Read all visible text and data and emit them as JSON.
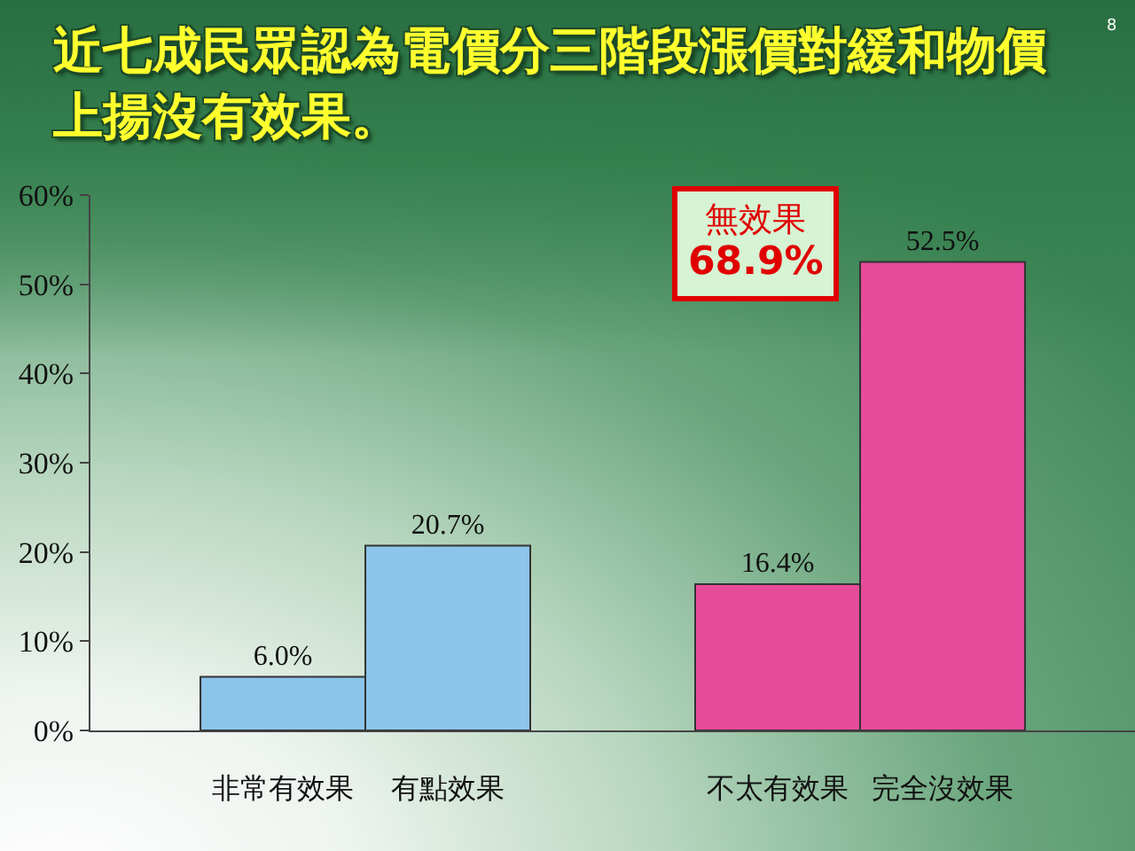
{
  "chart_data": {
    "type": "bar",
    "title": "近七成民眾認為電價分三階段漲價對緩和物價上揚沒有效果。",
    "categories": [
      "非常有效果",
      "有點效果",
      null,
      "不太有效果",
      "完全沒效果"
    ],
    "values": [
      6.0,
      20.7,
      null,
      16.4,
      52.5
    ],
    "colors": [
      "#8cc4ea",
      "#8cc4ea",
      null,
      "#e64b9b",
      "#e64b9b"
    ],
    "value_labels": [
      "6.0%",
      "20.7%",
      null,
      "16.4%",
      "52.5%"
    ],
    "ylim": [
      0,
      60
    ],
    "yticks": [
      {
        "value": 0,
        "label": "0%"
      },
      {
        "value": 10,
        "label": "10%"
      },
      {
        "value": 20,
        "label": "20%"
      },
      {
        "value": 30,
        "label": "30%"
      },
      {
        "value": 40,
        "label": "40%"
      },
      {
        "value": 50,
        "label": "50%"
      },
      {
        "value": 60,
        "label": "60%"
      }
    ],
    "annotations": [
      "無效果",
      "68.9%",
      "8"
    ],
    "legend": false,
    "grid": false
  }
}
